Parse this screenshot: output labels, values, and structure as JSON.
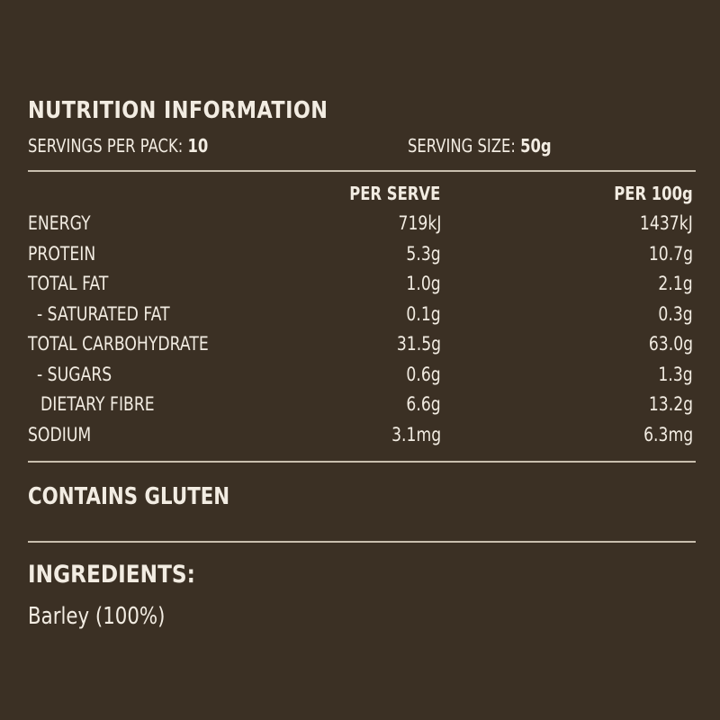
{
  "panel": {
    "title": "NUTRITION INFORMATION",
    "servings_per_pack_label": "SERVINGS PER PACK:",
    "servings_per_pack_value": "10",
    "serving_size_label": "SERVING SIZE:",
    "serving_size_value": "50g",
    "column_per_serve": "PER SERVE",
    "column_per_100g": "PER 100g"
  },
  "rows": [
    {
      "label": "ENERGY",
      "per_serve": "719kJ",
      "per_100g": "1437kJ"
    },
    {
      "label": "PROTEIN",
      "per_serve": "5.3g",
      "per_100g": "10.7g"
    },
    {
      "label": "TOTAL FAT",
      "per_serve": "1.0g",
      "per_100g": "2.1g"
    },
    {
      "label": "- SATURATED FAT",
      "per_serve": "0.1g",
      "per_100g": "0.3g"
    },
    {
      "label": "TOTAL CARBOHYDRATE",
      "per_serve": "31.5g",
      "per_100g": "63.0g"
    },
    {
      "label": "- SUGARS",
      "per_serve": "0.6g",
      "per_100g": "1.3g"
    },
    {
      "label": "DIETARY FIBRE",
      "per_serve": "6.6g",
      "per_100g": "13.2g"
    },
    {
      "label": "SODIUM",
      "per_serve": "3.1mg",
      "per_100g": "6.3mg"
    }
  ],
  "allergen": "CONTAINS GLUTEN",
  "ingredients": {
    "title": "INGREDIENTS:",
    "text": "Barley (100%)"
  },
  "colors": {
    "background": "#3b3024",
    "text": "#f2ece2",
    "rule": "#c9bfae"
  }
}
